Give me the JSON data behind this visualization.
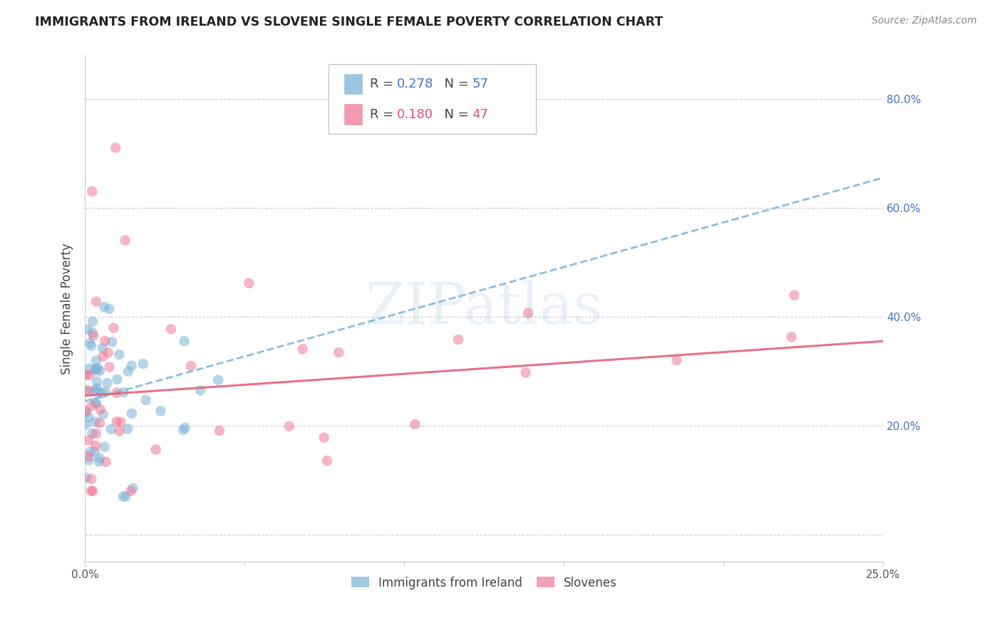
{
  "title": "IMMIGRANTS FROM IRELAND VS SLOVENE SINGLE FEMALE POVERTY CORRELATION CHART",
  "source": "Source: ZipAtlas.com",
  "ylabel": "Single Female Poverty",
  "legend_label1": "Immigrants from Ireland",
  "legend_label2": "Slovenes",
  "blue_color": "#7ab3d8",
  "pink_color": "#f07898",
  "blue_line_color": "#7ab3d8",
  "pink_line_color": "#e8607a",
  "x_min": 0.0,
  "x_max": 0.25,
  "y_min": -0.05,
  "y_max": 0.88,
  "y_ticks": [
    0.0,
    0.2,
    0.4,
    0.6,
    0.8
  ],
  "y_tick_labels_right": [
    "",
    "20.0%",
    "40.0%",
    "60.0%",
    "80.0%"
  ],
  "x_tick_labels": [
    "0.0%",
    "",
    "",
    "",
    "",
    "25.0%"
  ],
  "x_ticks": [
    0.0,
    0.05,
    0.1,
    0.15,
    0.2,
    0.25
  ],
  "blue_line_x0": 0.0,
  "blue_line_y0": 0.245,
  "blue_line_x1": 0.25,
  "blue_line_y1": 0.655,
  "pink_line_x0": 0.0,
  "pink_line_y0": 0.255,
  "pink_line_x1": 0.25,
  "pink_line_y1": 0.355,
  "R_blue": "0.278",
  "N_blue": "57",
  "R_pink": "0.180",
  "N_pink": "47",
  "blue_text_color": "#4472c4",
  "pink_text_color": "#e05070",
  "grid_color": "#cccccc",
  "watermark_color": "#b8d0e8",
  "watermark_alpha": 0.3,
  "title_color": "#222222",
  "source_color": "#888888",
  "axis_label_color": "#444444",
  "scatter_alpha": 0.55,
  "scatter_size": 110
}
